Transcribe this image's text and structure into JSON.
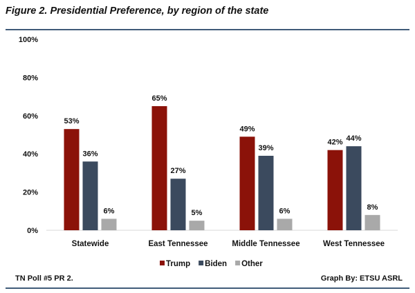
{
  "chart_data": {
    "type": "bar",
    "title": "Figure 2. Presidential Preference, by region of the state",
    "categories": [
      "Statewide",
      "East Tennessee",
      "Middle Tennessee",
      "West Tennessee"
    ],
    "series": [
      {
        "name": "Trump",
        "color": "#8b1209",
        "values": [
          53,
          65,
          49,
          42
        ]
      },
      {
        "name": "Biden",
        "color": "#3b4a5e",
        "values": [
          36,
          27,
          39,
          44
        ]
      },
      {
        "name": "Other",
        "color": "#a9a9a9",
        "values": [
          6,
          5,
          6,
          8
        ]
      }
    ],
    "ylim": [
      0,
      100
    ],
    "yticks": [
      "0%",
      "20%",
      "40%",
      "60%",
      "80%",
      "100%"
    ],
    "value_suffix": "%",
    "grid": false,
    "legend": "bottom"
  },
  "footer": {
    "left": "TN Poll #5 PR 2.",
    "right": "Graph By: ETSU ASRL"
  }
}
